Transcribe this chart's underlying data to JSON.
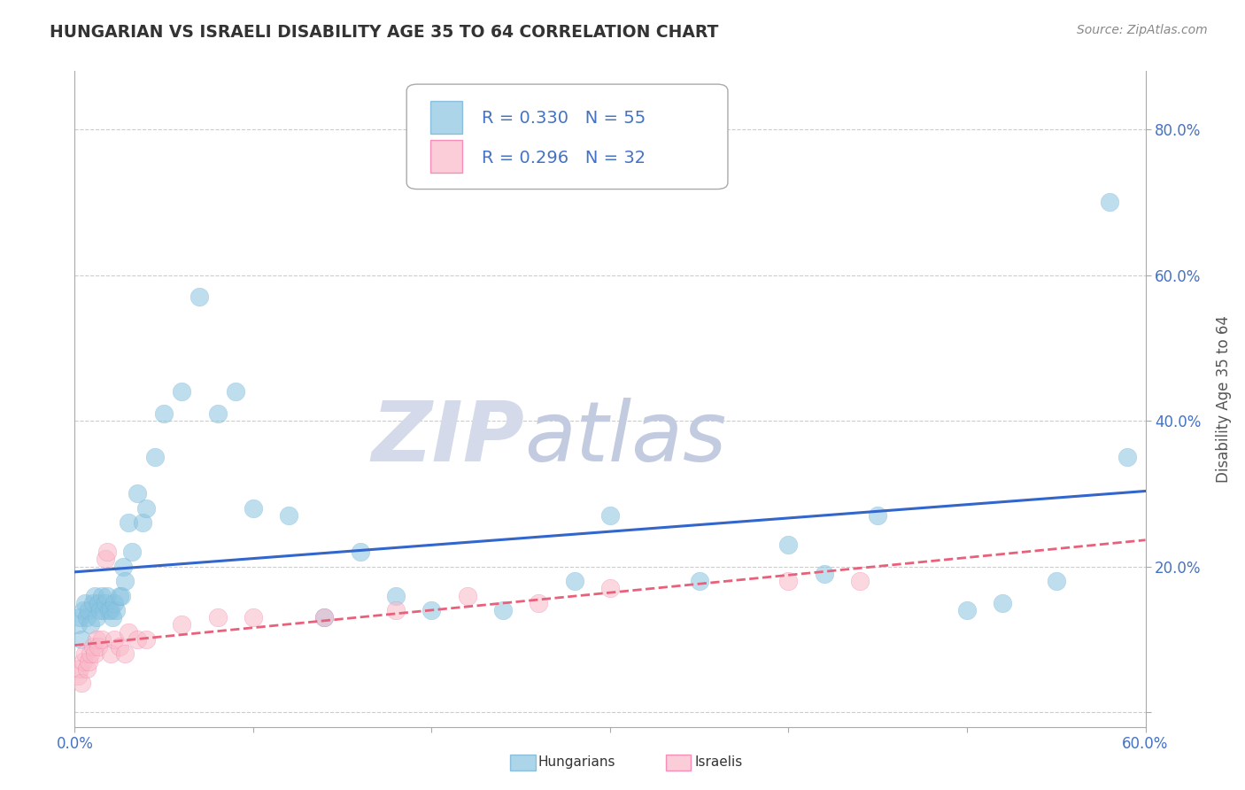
{
  "title": "HUNGARIAN VS ISRAELI DISABILITY AGE 35 TO 64 CORRELATION CHART",
  "source_text": "Source: ZipAtlas.com",
  "xlim": [
    0.0,
    0.6
  ],
  "ylim": [
    -0.02,
    0.88
  ],
  "hungarian_R": 0.33,
  "hungarian_N": 55,
  "israeli_R": 0.296,
  "israeli_N": 32,
  "hungarian_color": "#89c4e1",
  "hungarian_edge_color": "#6baed6",
  "israeli_color": "#f9b8c8",
  "israeli_edge_color": "#f768a1",
  "hungarian_line_color": "#3366cc",
  "israeli_line_color": "#e8607a",
  "watermark_zip": "ZIP",
  "watermark_atlas": "atlas",
  "watermark_color_zip": "#d8dff0",
  "watermark_color_atlas": "#c8cfe8",
  "legend_text_color": "#4472c4",
  "tick_color": "#4472c4",
  "ylabel_text": "Disability Age 35 to 64",
  "hungarian_x": [
    0.002,
    0.003,
    0.004,
    0.005,
    0.006,
    0.007,
    0.008,
    0.009,
    0.01,
    0.011,
    0.012,
    0.013,
    0.014,
    0.015,
    0.016,
    0.017,
    0.018,
    0.019,
    0.02,
    0.021,
    0.022,
    0.023,
    0.025,
    0.026,
    0.027,
    0.028,
    0.03,
    0.032,
    0.035,
    0.038,
    0.04,
    0.045,
    0.05,
    0.06,
    0.07,
    0.08,
    0.09,
    0.1,
    0.12,
    0.14,
    0.16,
    0.18,
    0.2,
    0.24,
    0.28,
    0.3,
    0.35,
    0.4,
    0.42,
    0.45,
    0.5,
    0.52,
    0.55,
    0.58,
    0.59
  ],
  "hungarian_y": [
    0.12,
    0.13,
    0.1,
    0.14,
    0.15,
    0.13,
    0.14,
    0.12,
    0.15,
    0.16,
    0.13,
    0.15,
    0.14,
    0.16,
    0.14,
    0.15,
    0.16,
    0.14,
    0.14,
    0.13,
    0.15,
    0.14,
    0.16,
    0.16,
    0.2,
    0.18,
    0.26,
    0.22,
    0.3,
    0.26,
    0.28,
    0.35,
    0.41,
    0.44,
    0.57,
    0.41,
    0.44,
    0.28,
    0.27,
    0.13,
    0.22,
    0.16,
    0.14,
    0.14,
    0.18,
    0.27,
    0.18,
    0.23,
    0.19,
    0.27,
    0.14,
    0.15,
    0.18,
    0.7,
    0.35
  ],
  "israeli_x": [
    0.002,
    0.003,
    0.004,
    0.005,
    0.006,
    0.007,
    0.008,
    0.009,
    0.01,
    0.011,
    0.012,
    0.013,
    0.015,
    0.017,
    0.018,
    0.02,
    0.022,
    0.025,
    0.028,
    0.03,
    0.035,
    0.04,
    0.06,
    0.08,
    0.1,
    0.14,
    0.18,
    0.22,
    0.26,
    0.3,
    0.4,
    0.44
  ],
  "israeli_y": [
    0.05,
    0.06,
    0.04,
    0.07,
    0.08,
    0.06,
    0.07,
    0.08,
    0.09,
    0.08,
    0.1,
    0.09,
    0.1,
    0.21,
    0.22,
    0.08,
    0.1,
    0.09,
    0.08,
    0.11,
    0.1,
    0.1,
    0.12,
    0.13,
    0.13,
    0.13,
    0.14,
    0.16,
    0.15,
    0.17,
    0.18,
    0.18
  ]
}
